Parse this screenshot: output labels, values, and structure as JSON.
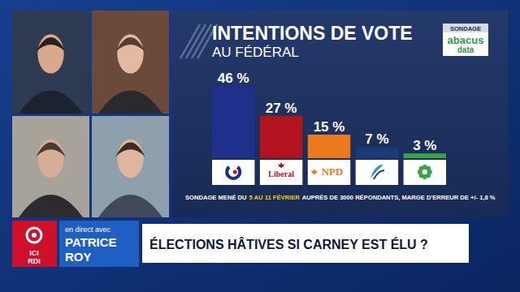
{
  "chart_data": {
    "type": "bar",
    "title": "INTENTIONS DE VOTE",
    "subtitle": "AU FÉDÉRAL",
    "categories": [
      null,
      "Liberal",
      "NPD",
      null,
      null
    ],
    "values": [
      46,
      27,
      15,
      7,
      3
    ],
    "value_labels": [
      "46 %",
      "27 %",
      "15 %",
      "7 %",
      "3 %"
    ],
    "colors": [
      "#1f2f8c",
      "#b3121f",
      "#ec7a1c",
      "#1b3a78",
      "#35a646"
    ],
    "data_labels": true,
    "source": {
      "label": "SONDAGE",
      "name": [
        "abacus",
        "data"
      ]
    },
    "note": [
      "SONDAGE MENÉ DU",
      "5 AU 11 FÉVRIER",
      "AUPRÈS DE 3000 RÉPONDANTS, MARGE D'ERREUR DE +/- 1,8 %"
    ]
  },
  "broadcast": {
    "network": [
      "ICI",
      "RDI"
    ],
    "prefix": "en direct avec",
    "host": [
      "PATRICE",
      "ROY"
    ],
    "headline": "ÉLECTIONS HÂTIVES SI CARNEY EST ÉLU ?"
  }
}
